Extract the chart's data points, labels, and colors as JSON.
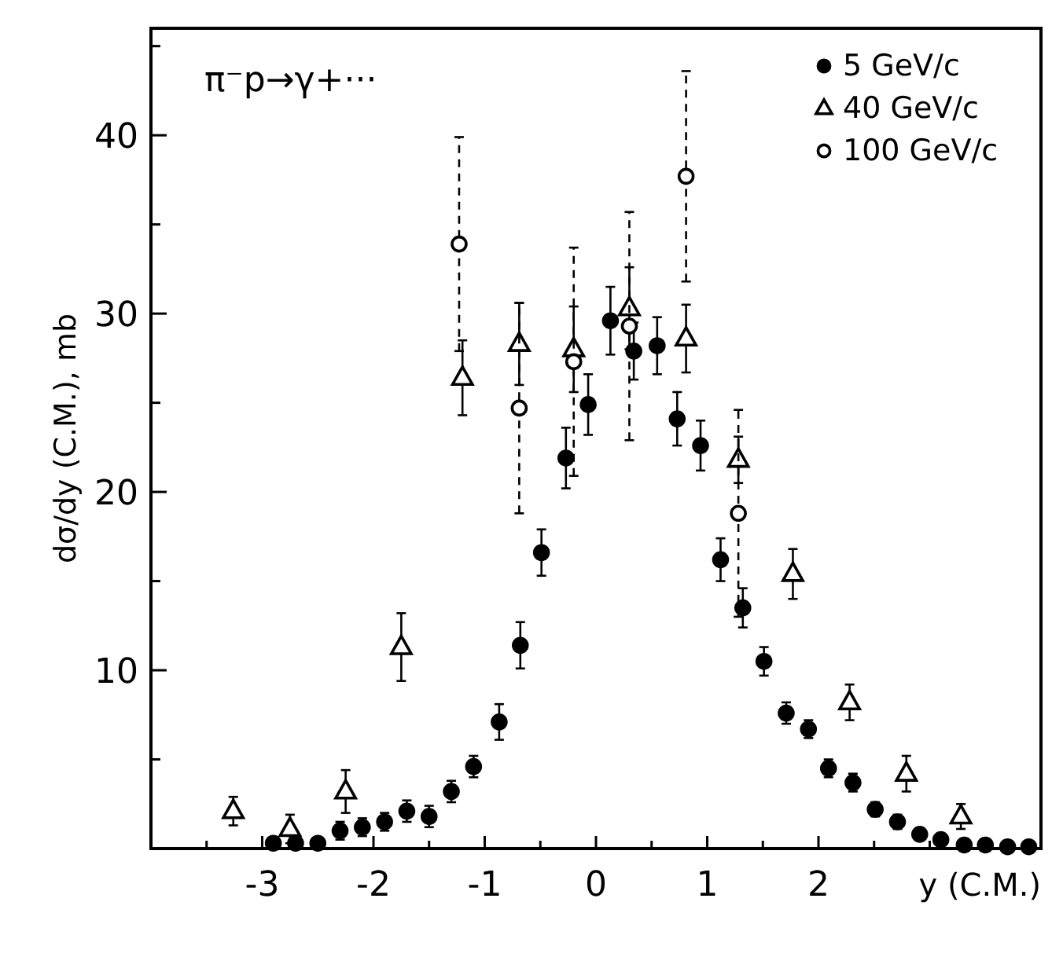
{
  "chart_data": {
    "type": "scatter",
    "xlabel": "y (C.M.)",
    "ylabel": "dσ/dy  (C.M.), mb",
    "annotations": [
      "π⁻p→γ+···"
    ],
    "xlim": [
      -4,
      4
    ],
    "ylim": [
      0,
      46
    ],
    "xticks": [
      {
        "value": -3.5,
        "label": null
      },
      -3,
      {
        "value": -2.5,
        "label": null
      },
      -2,
      {
        "value": -1.5,
        "label": null
      },
      -1,
      {
        "value": -0.5,
        "label": null
      },
      0,
      {
        "value": 0.5,
        "label": null
      },
      1,
      {
        "value": 1.5,
        "label": null
      },
      2,
      {
        "value": 2.5,
        "label": null
      },
      {
        "value": 3,
        "label": null
      }
    ],
    "yticks": [
      {
        "value": 5,
        "label": null
      },
      10,
      {
        "value": 15,
        "label": null
      },
      20,
      {
        "value": 25,
        "label": null
      },
      30,
      {
        "value": 35,
        "label": null
      },
      40,
      {
        "value": 45,
        "label": null
      }
    ],
    "grid": false,
    "legend": "top right",
    "series": [
      {
        "name": "5 GeV/c",
        "color": "#000000",
        "marker": "circle",
        "line_style": "solid",
        "x": [
          -2.9,
          -2.7,
          -2.5,
          -2.3,
          -2.1,
          -1.9,
          -1.7,
          -1.5,
          -1.3,
          -1.1,
          -0.87,
          -0.68,
          -0.49,
          -0.27,
          -0.07,
          0.13,
          0.34,
          0.55,
          0.73,
          0.94,
          1.12,
          1.32,
          1.51,
          1.71,
          1.91,
          2.09,
          2.31,
          2.51,
          2.71,
          2.91,
          3.1,
          3.31,
          3.5,
          3.7,
          3.89
        ],
        "values": [
          0.3,
          0.3,
          0.3,
          1.0,
          1.2,
          1.5,
          2.1,
          1.8,
          3.2,
          4.6,
          7.1,
          11.4,
          16.6,
          21.9,
          24.9,
          29.6,
          27.9,
          28.2,
          24.1,
          22.6,
          16.2,
          13.5,
          10.5,
          7.6,
          6.7,
          4.5,
          3.7,
          2.2,
          1.5,
          0.8,
          0.5,
          0.2,
          0.2,
          0.1,
          0.1
        ],
        "errors": [
          null,
          null,
          null,
          0.5,
          0.5,
          0.5,
          0.6,
          0.6,
          0.6,
          0.6,
          1.0,
          1.3,
          1.3,
          1.7,
          1.7,
          1.9,
          1.6,
          1.6,
          1.5,
          1.4,
          1.2,
          1.1,
          0.8,
          0.6,
          0.5,
          0.5,
          0.5,
          0.4,
          0.4,
          null,
          null,
          null,
          null,
          null,
          null
        ]
      },
      {
        "name": "40 GeV/c",
        "color": "#000000",
        "marker": "triangle",
        "line_style": "solid",
        "x": [
          -3.26,
          -2.75,
          -2.25,
          -1.75,
          -1.2,
          -0.69,
          -0.2,
          0.3,
          0.81,
          1.28,
          1.77,
          2.28,
          2.79,
          3.28
        ],
        "values": [
          2.1,
          1.1,
          3.2,
          11.3,
          26.4,
          28.3,
          28.0,
          30.3,
          28.6,
          21.8,
          15.4,
          8.2,
          4.2,
          1.8
        ],
        "errors": [
          0.8,
          0.8,
          1.2,
          1.9,
          2.1,
          2.3,
          2.4,
          2.3,
          1.9,
          1.3,
          1.4,
          1.0,
          1.0,
          0.7
        ]
      },
      {
        "name": "100 GeV/c",
        "color": "#000000",
        "marker": "circle",
        "line_style": "dashed",
        "x": [
          -1.23,
          -0.69,
          -0.2,
          0.3,
          0.81,
          1.28
        ],
        "values": [
          33.9,
          24.7,
          27.3,
          29.3,
          37.7,
          18.8
        ],
        "errors": [
          6.0,
          5.9,
          6.4,
          6.4,
          5.9,
          5.8
        ]
      }
    ]
  }
}
